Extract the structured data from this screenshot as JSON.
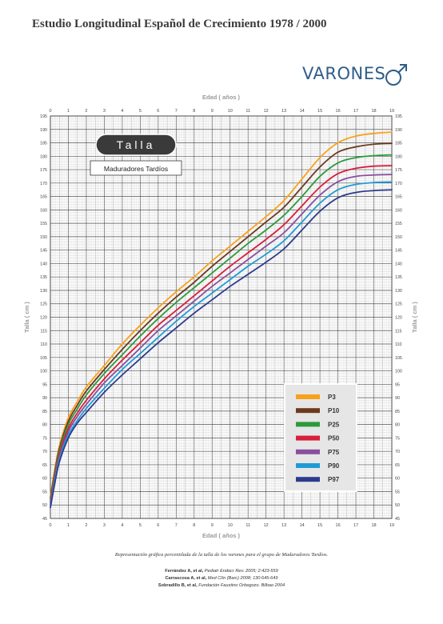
{
  "header": {
    "title": "Estudio Longitudinal Español de Crecimiento 1978 / 2000",
    "varones": "VARONES"
  },
  "colors": {
    "P3": "#f7a21b",
    "P10": "#6b3a1f",
    "P25": "#2d9a3c",
    "P50": "#d81e3c",
    "P75": "#8a4f9e",
    "P90": "#1f9bd6",
    "P97": "#2c3b8c",
    "grid": "#8a8a8a",
    "axis_text": "#9a9a9a"
  },
  "chart_data": {
    "type": "line",
    "title": "Talla",
    "subtitle": "Maduradores Tardíos",
    "xlabel": "Edad ( años )",
    "ylabel": "Talla ( cm )",
    "xlim": [
      0,
      19
    ],
    "ylim": [
      45,
      195
    ],
    "x_ticks": [
      "0",
      "1",
      "2",
      "3",
      "4",
      "5",
      "6",
      "7",
      "8",
      "9",
      "10",
      "11",
      "12",
      "13",
      "14",
      "15",
      "16",
      "17",
      "18",
      "19"
    ],
    "y_ticks": [
      "45",
      "50",
      "55",
      "60",
      "65",
      "70",
      "75",
      "80",
      "85",
      "90",
      "95",
      "100",
      "105",
      "110",
      "115",
      "120",
      "125",
      "130",
      "135",
      "140",
      "145",
      "150",
      "155",
      "160",
      "165",
      "170",
      "175",
      "180",
      "185",
      "190",
      "195"
    ],
    "grid": true,
    "legend_position": "bottom-right",
    "x": [
      0,
      0.25,
      0.5,
      1,
      1.5,
      2,
      3,
      4,
      5,
      6,
      7,
      8,
      9,
      10,
      11,
      12,
      13,
      14,
      15,
      16,
      17,
      18,
      19
    ],
    "series": [
      {
        "name": "P3",
        "values": [
          53.0,
          63.5,
          72.0,
          82.5,
          88.5,
          94.0,
          102.0,
          110.0,
          117.0,
          123.5,
          129.5,
          135.0,
          141.0,
          146.5,
          152.0,
          157.5,
          163.5,
          171.5,
          179.5,
          185.0,
          187.5,
          188.5,
          189.0
        ]
      },
      {
        "name": "P10",
        "values": [
          52.3,
          62.5,
          71.0,
          81.2,
          87.2,
          92.5,
          100.5,
          108.0,
          115.0,
          121.5,
          127.5,
          133.0,
          139.0,
          144.5,
          150.0,
          155.5,
          161.0,
          168.5,
          176.0,
          181.5,
          183.5,
          184.5,
          184.8
        ]
      },
      {
        "name": "P25",
        "values": [
          51.5,
          61.5,
          70.0,
          80.0,
          85.8,
          91.0,
          99.0,
          106.0,
          113.0,
          119.5,
          125.5,
          131.0,
          136.5,
          142.0,
          147.5,
          152.5,
          158.0,
          165.0,
          172.5,
          177.5,
          179.5,
          180.2,
          180.5
        ]
      },
      {
        "name": "P50",
        "values": [
          50.8,
          60.5,
          69.0,
          78.5,
          84.3,
          89.0,
          97.0,
          104.0,
          110.5,
          117.0,
          122.5,
          128.0,
          133.5,
          139.0,
          144.0,
          149.0,
          154.5,
          161.5,
          168.5,
          173.5,
          175.5,
          176.3,
          176.5
        ]
      },
      {
        "name": "P75",
        "values": [
          50.2,
          59.7,
          68.0,
          77.3,
          83.0,
          87.5,
          95.5,
          102.0,
          108.5,
          115.0,
          120.5,
          126.0,
          131.5,
          136.5,
          141.5,
          146.5,
          151.5,
          158.5,
          165.5,
          170.5,
          172.5,
          173.0,
          173.2
        ]
      },
      {
        "name": "P90",
        "values": [
          49.6,
          59.0,
          67.0,
          76.0,
          81.5,
          86.0,
          93.5,
          100.5,
          106.5,
          112.5,
          118.5,
          124.0,
          129.0,
          134.0,
          139.0,
          143.5,
          148.5,
          155.5,
          162.5,
          167.5,
          169.5,
          170.2,
          170.4
        ]
      },
      {
        "name": "P97",
        "values": [
          49.0,
          58.2,
          66.0,
          75.0,
          80.5,
          84.5,
          92.0,
          98.5,
          104.5,
          110.5,
          116.0,
          121.5,
          126.5,
          131.5,
          136.0,
          140.5,
          145.5,
          152.5,
          159.5,
          164.5,
          166.5,
          167.2,
          167.5
        ]
      }
    ]
  },
  "footer": {
    "caption": "Representación gráfica percentilada de la talla de los varones para el grupo de Maduradores Tardíos.",
    "refs": [
      {
        "authors": "Ferrández A, et al,",
        "source": "Pediatr Endocr Rev. 2005; 2:423-559"
      },
      {
        "authors": "Carrascosa A, et al,",
        "source": "Med Clín (Barc) 2008; 130:645-649"
      },
      {
        "authors": "Sobradillo B, et al,",
        "source": "Fundación Faustino Orbegozo. Bilbao 2004"
      }
    ]
  }
}
